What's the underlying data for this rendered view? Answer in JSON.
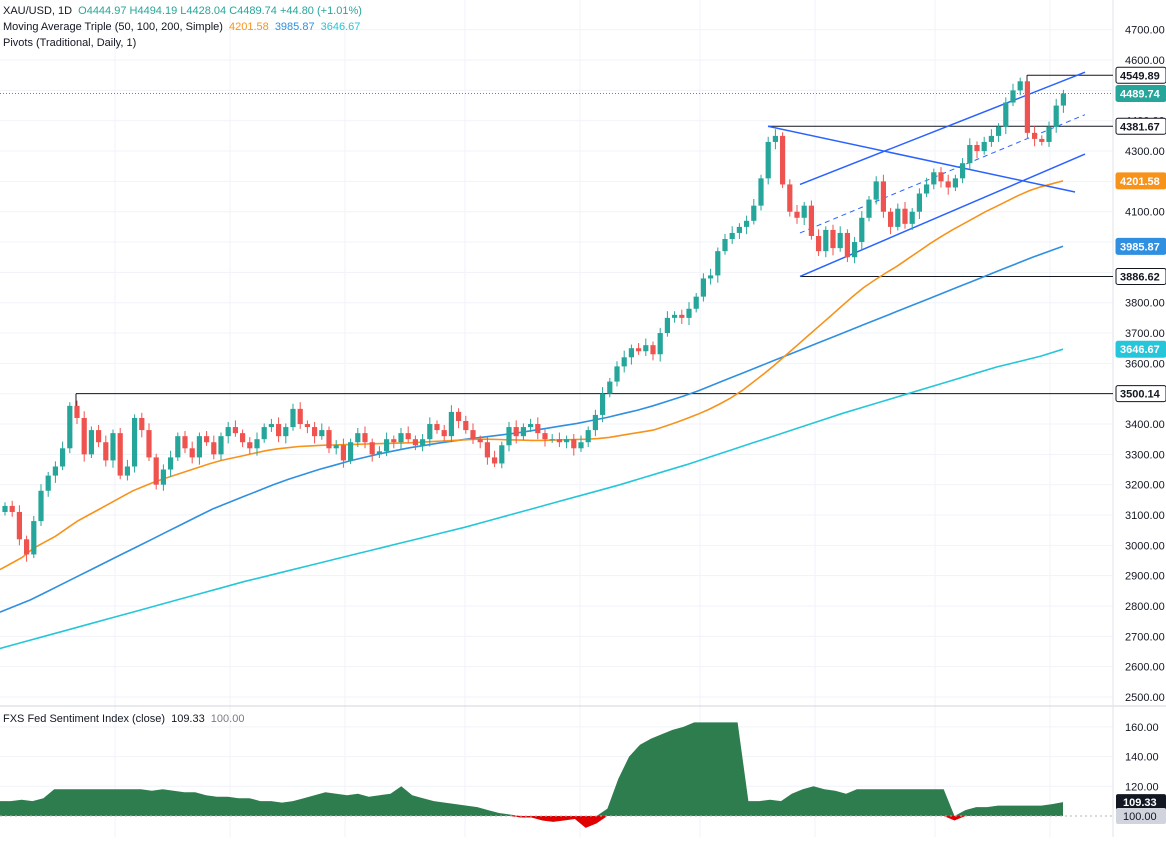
{
  "legend": {
    "symbol": "XAU/USD, 1D",
    "ohlc": "O4444.97  H4494.19  L4428.04  C4489.74  +44.80 (+1.01%)",
    "ma_label": "Moving Average Triple (50, 100, 200, Simple)",
    "ma50": "4201.58",
    "ma100": "3985.87",
    "ma200": "3646.67",
    "pivots_label": "Pivots (Traditional, Daily, 1)",
    "indicator_label": "FXS Fed Sentiment Index (close)",
    "indicator_value": "109.33",
    "indicator_base": "100.00"
  },
  "colors": {
    "up": "#26a69a",
    "down": "#ef5350",
    "ma50": "#f7931a",
    "ma100": "#2f8fe0",
    "ma200": "#26c6da",
    "trend": "#2962ff",
    "grid": "#f0f3fa",
    "last_price": "#26a69a",
    "sentiment_up": "#2e7d4f",
    "sentiment_down": "#e00000"
  },
  "chart_data": [
    {
      "type": "candlestick",
      "title": "XAU/USD, 1D",
      "y_ticks": [
        2500,
        2600,
        2700,
        2800,
        2900,
        3000,
        3100,
        3200,
        3300,
        3400,
        3500,
        3600,
        3700,
        3800,
        3900,
        4000,
        4100,
        4200,
        4300,
        4400,
        4500,
        4600,
        4700
      ],
      "tick_labels": [
        "2500.00",
        "2600.00",
        "2700.00",
        "2800.00",
        "2900.00",
        "3000.00",
        "3100.00",
        "3200.00",
        "3300.00",
        "3400.00",
        "3500.00",
        "3600.00",
        "3700.00",
        "3800.00",
        "3900.00",
        "4000.00",
        "4100.00",
        "4200.00",
        "4300.00",
        "4400.00",
        "4500.00",
        "4600.00",
        "4700.00"
      ],
      "ylim": [
        2470,
        4760
      ],
      "price_markers": [
        {
          "value": 4549.89,
          "label": "4549.89",
          "style": "level"
        },
        {
          "value": 4489.74,
          "label": "4489.74",
          "style": "last",
          "color": "#26a69a"
        },
        {
          "value": 4381.67,
          "label": "4381.67",
          "style": "level"
        },
        {
          "value": 4201.58,
          "label": "4201.58",
          "style": "ma",
          "color": "#f7931a"
        },
        {
          "value": 3985.87,
          "label": "3985.87",
          "style": "ma",
          "color": "#2f8fe0"
        },
        {
          "value": 3886.62,
          "label": "3886.62",
          "style": "level"
        },
        {
          "value": 3646.67,
          "label": "3646.67",
          "style": "ma",
          "color": "#26c6da"
        },
        {
          "value": 3500.14,
          "label": "3500.14",
          "style": "level"
        }
      ],
      "closes": [
        3130,
        3110,
        3020,
        2970,
        3080,
        3180,
        3230,
        3260,
        3320,
        3460,
        3420,
        3300,
        3380,
        3340,
        3280,
        3370,
        3230,
        3260,
        3420,
        3380,
        3290,
        3200,
        3250,
        3290,
        3360,
        3320,
        3290,
        3360,
        3340,
        3300,
        3360,
        3390,
        3370,
        3340,
        3320,
        3350,
        3390,
        3400,
        3360,
        3390,
        3450,
        3400,
        3390,
        3360,
        3380,
        3320,
        3330,
        3280,
        3340,
        3370,
        3340,
        3300,
        3310,
        3350,
        3340,
        3370,
        3350,
        3330,
        3350,
        3400,
        3380,
        3360,
        3440,
        3410,
        3380,
        3350,
        3340,
        3290,
        3270,
        3330,
        3390,
        3360,
        3390,
        3400,
        3370,
        3350,
        3350,
        3340,
        3350,
        3320,
        3340,
        3380,
        3430,
        3500,
        3540,
        3590,
        3620,
        3650,
        3640,
        3660,
        3630,
        3700,
        3750,
        3760,
        3750,
        3780,
        3820,
        3880,
        3890,
        3970,
        4010,
        4030,
        4050,
        4070,
        4120,
        4210,
        4330,
        4350,
        4190,
        4100,
        4080,
        4120,
        4020,
        3970,
        4040,
        3980,
        4030,
        3950,
        4000,
        4080,
        4140,
        4200,
        4100,
        4050,
        4110,
        4060,
        4100,
        4160,
        4190,
        4230,
        4200,
        4180,
        4210,
        4260,
        4320,
        4300,
        4330,
        4350,
        4380,
        4460,
        4500,
        4530,
        4360,
        4340,
        4330,
        4380,
        4450,
        4489.74
      ],
      "ma50": [
        2920,
        2940,
        2960,
        2990,
        3010,
        3030,
        3055,
        3080,
        3100,
        3120,
        3140,
        3160,
        3180,
        3195,
        3210,
        3222,
        3234,
        3246,
        3258,
        3270,
        3280,
        3288,
        3296,
        3304,
        3312,
        3318,
        3322,
        3326,
        3328,
        3330,
        3331,
        3332,
        3333,
        3334,
        3335,
        3336,
        3337,
        3338,
        3340,
        3342,
        3344,
        3346,
        3348,
        3350,
        3350,
        3349,
        3348,
        3347,
        3346,
        3346,
        3347,
        3348,
        3349,
        3350,
        3352,
        3356,
        3362,
        3368,
        3374,
        3380,
        3392,
        3404,
        3418,
        3432,
        3448,
        3466,
        3486,
        3510,
        3538,
        3566,
        3596,
        3628,
        3660,
        3692,
        3724,
        3756,
        3788,
        3820,
        3850,
        3875,
        3898,
        3920,
        3945,
        3970,
        3995,
        4018,
        4040,
        4060,
        4080,
        4100,
        4118,
        4136,
        4154,
        4170,
        4182,
        4192,
        4201.58
      ],
      "ma100": [
        2780,
        2800,
        2820,
        2845,
        2870,
        2895,
        2920,
        2945,
        2970,
        2995,
        3020,
        3045,
        3070,
        3095,
        3120,
        3140,
        3160,
        3180,
        3200,
        3218,
        3234,
        3250,
        3264,
        3278,
        3290,
        3302,
        3312,
        3322,
        3330,
        3338,
        3345,
        3352,
        3358,
        3364,
        3370,
        3378,
        3386,
        3394,
        3402,
        3412,
        3422,
        3434,
        3446,
        3460,
        3476,
        3492,
        3510,
        3530,
        3550,
        3570,
        3590,
        3610,
        3630,
        3650,
        3670,
        3690,
        3710,
        3730,
        3750,
        3770,
        3790,
        3810,
        3830,
        3850,
        3870,
        3890,
        3910,
        3930,
        3950,
        3968,
        3985.87
      ],
      "ma200": [
        2660,
        2680,
        2700,
        2720,
        2740,
        2760,
        2780,
        2800,
        2820,
        2840,
        2860,
        2880,
        2898,
        2916,
        2934,
        2952,
        2970,
        2988,
        3006,
        3024,
        3042,
        3060,
        3080,
        3100,
        3120,
        3140,
        3160,
        3180,
        3200,
        3222,
        3244,
        3266,
        3290,
        3314,
        3338,
        3362,
        3386,
        3410,
        3434,
        3456,
        3478,
        3500,
        3522,
        3544,
        3566,
        3588,
        3606,
        3624,
        3646.67
      ],
      "pivots": [
        {
          "value": 3500.14,
          "label": "3500.14"
        },
        {
          "value": 4381.67,
          "label": "4381.67"
        },
        {
          "value": 3886.62,
          "label": "3886.62"
        },
        {
          "value": 4549.89,
          "label": "4549.89"
        }
      ]
    },
    {
      "type": "area",
      "title": "FXS Fed Sentiment Index (close)",
      "y_ticks": [
        100,
        120,
        140,
        160
      ],
      "tick_labels": [
        "100.00",
        "120.00",
        "140.00",
        "160.00"
      ],
      "ylim": [
        95,
        168
      ],
      "baseline": 100,
      "last_value": 109.33,
      "values": [
        110,
        110,
        111,
        110,
        112,
        118,
        118,
        118,
        118,
        118,
        118,
        118,
        118,
        118,
        117,
        118,
        117,
        116,
        116,
        114,
        113,
        113,
        112,
        112,
        110,
        110,
        109,
        110,
        112,
        114,
        116,
        115,
        114,
        115,
        113,
        114,
        115,
        120,
        114,
        112,
        110,
        109,
        108,
        107,
        106,
        104,
        102,
        101,
        99,
        99,
        97,
        96,
        97,
        98,
        92,
        95,
        105,
        125,
        140,
        148,
        152,
        155,
        158,
        160,
        163,
        163,
        163,
        163,
        163,
        110,
        110,
        111,
        110,
        115,
        118,
        120,
        118,
        117,
        115,
        118,
        118,
        118,
        118,
        118,
        118,
        118,
        118,
        118,
        97,
        104,
        106,
        106,
        107,
        107,
        107,
        107,
        107,
        108,
        109.33
      ]
    }
  ]
}
